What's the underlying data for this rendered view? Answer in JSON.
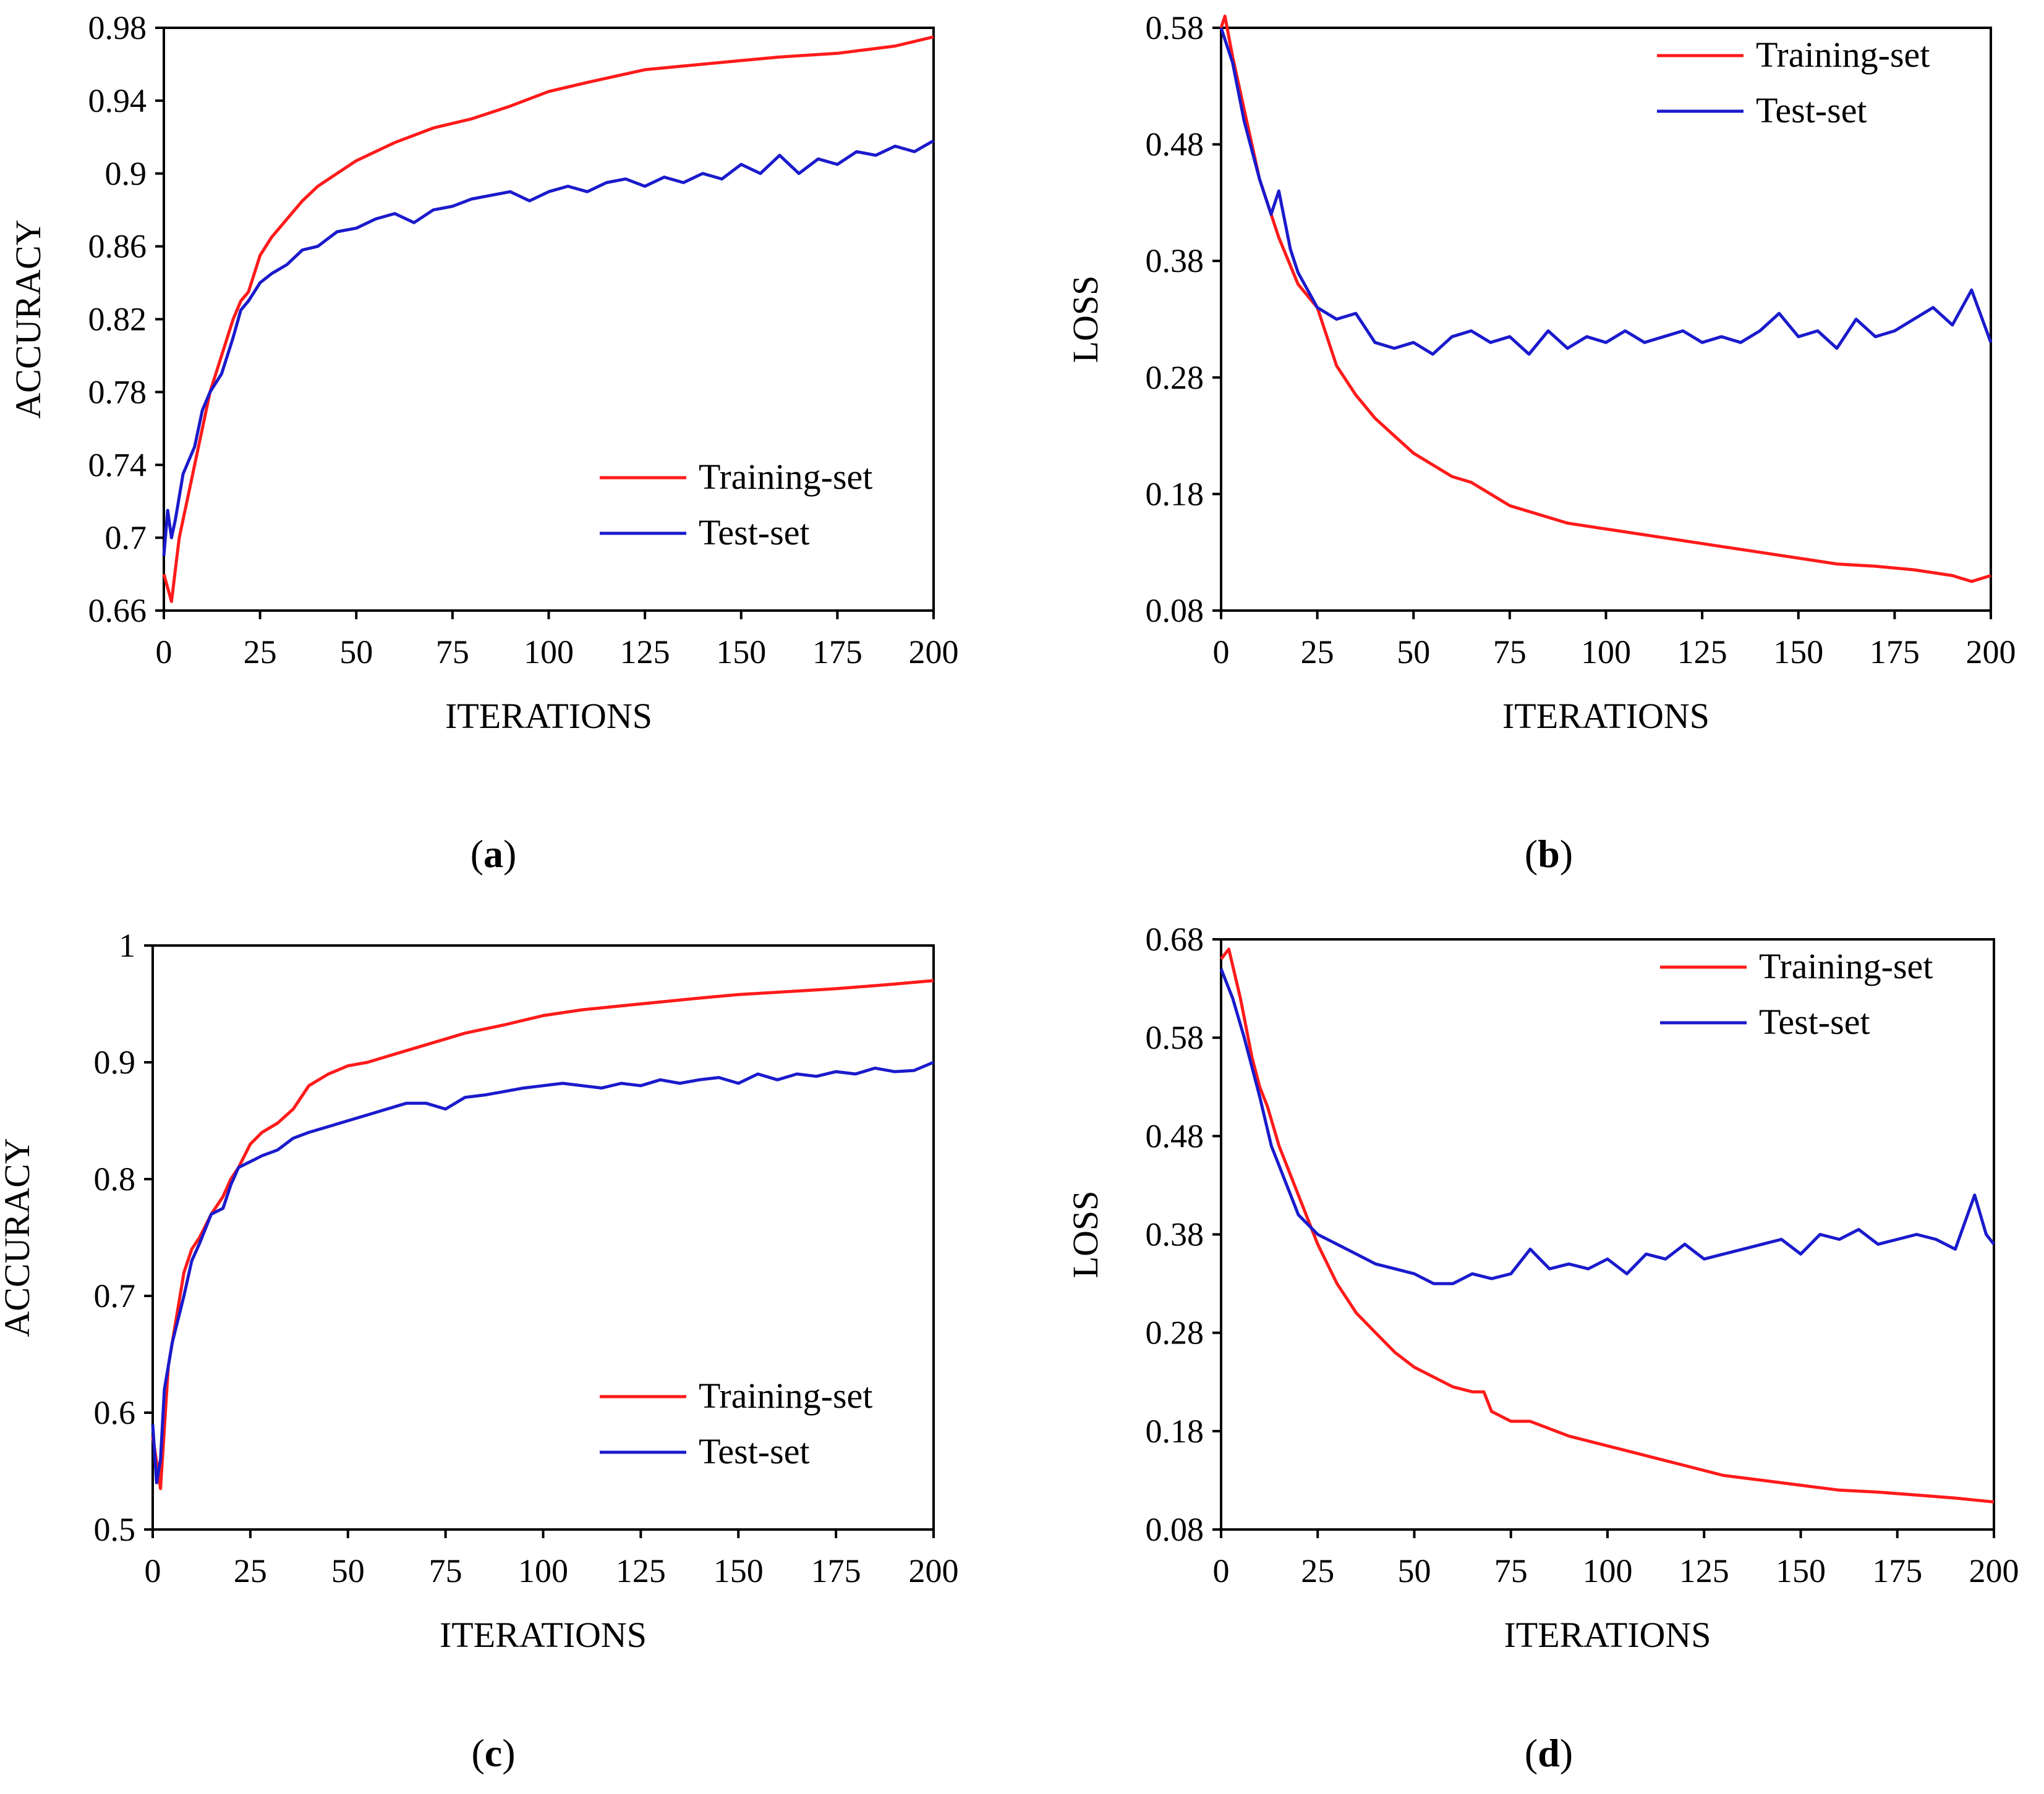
{
  "panels": [
    {
      "caption_letter": "a"
    },
    {
      "caption_letter": "b"
    },
    {
      "caption_letter": "c"
    },
    {
      "caption_letter": "d"
    }
  ],
  "colors": {
    "train": "#ff1a1a",
    "test": "#1a1acc",
    "axis": "#000000"
  },
  "chart_data": [
    {
      "type": "line",
      "xlabel": "ITERATIONS",
      "ylabel": "ACCURACY",
      "xlim": [
        0,
        200
      ],
      "ylim": [
        0.66,
        0.98
      ],
      "xticks": [
        "0",
        "25",
        "50",
        "75",
        "100",
        "125",
        "150",
        "175",
        "200"
      ],
      "yticks": [
        "0.66",
        "0.7",
        "0.74",
        "0.78",
        "0.82",
        "0.86",
        "0.9",
        "0.94",
        "0.98"
      ],
      "legend_position": "bottom-right",
      "grid": false,
      "series": [
        {
          "name": "Training-set",
          "color": "#ff1a1a",
          "x": [
            0,
            2,
            4,
            6,
            8,
            10,
            12,
            15,
            18,
            20,
            22,
            25,
            28,
            32,
            36,
            40,
            45,
            50,
            55,
            60,
            70,
            80,
            90,
            100,
            110,
            125,
            140,
            150,
            160,
            175,
            190,
            200
          ],
          "y": [
            0.68,
            0.665,
            0.7,
            0.72,
            0.74,
            0.76,
            0.78,
            0.8,
            0.82,
            0.83,
            0.835,
            0.855,
            0.865,
            0.875,
            0.885,
            0.893,
            0.9,
            0.907,
            0.912,
            0.917,
            0.925,
            0.93,
            0.937,
            0.945,
            0.95,
            0.957,
            0.96,
            0.962,
            0.964,
            0.966,
            0.97,
            0.975
          ]
        },
        {
          "name": "Test-set",
          "color": "#1a1acc",
          "x": [
            0,
            1,
            2,
            3,
            5,
            8,
            10,
            12,
            15,
            18,
            20,
            22,
            25,
            28,
            32,
            36,
            40,
            45,
            50,
            55,
            60,
            65,
            70,
            75,
            80,
            85,
            90,
            95,
            100,
            105,
            110,
            115,
            120,
            125,
            130,
            135,
            140,
            145,
            150,
            155,
            160,
            165,
            170,
            175,
            180,
            185,
            190,
            195,
            200
          ],
          "y": [
            0.69,
            0.715,
            0.7,
            0.71,
            0.735,
            0.75,
            0.77,
            0.78,
            0.79,
            0.81,
            0.825,
            0.83,
            0.84,
            0.845,
            0.85,
            0.858,
            0.86,
            0.868,
            0.87,
            0.875,
            0.878,
            0.873,
            0.88,
            0.882,
            0.886,
            0.888,
            0.89,
            0.885,
            0.89,
            0.893,
            0.89,
            0.895,
            0.897,
            0.893,
            0.898,
            0.895,
            0.9,
            0.897,
            0.905,
            0.9,
            0.91,
            0.9,
            0.908,
            0.905,
            0.912,
            0.91,
            0.915,
            0.912,
            0.918
          ]
        }
      ]
    },
    {
      "type": "line",
      "xlabel": "ITERATIONS",
      "ylabel": "LOSS",
      "xlim": [
        0,
        200
      ],
      "ylim": [
        0.08,
        0.58
      ],
      "xticks": [
        "0",
        "25",
        "50",
        "75",
        "100",
        "125",
        "150",
        "175",
        "200"
      ],
      "yticks": [
        "0.08",
        "0.18",
        "0.28",
        "0.38",
        "0.48",
        "0.58"
      ],
      "legend_position": "top-right",
      "grid": false,
      "series": [
        {
          "name": "Training-set",
          "color": "#ff1a1a",
          "x": [
            0,
            1,
            3,
            6,
            10,
            15,
            20,
            25,
            30,
            35,
            40,
            45,
            50,
            55,
            60,
            65,
            70,
            75,
            80,
            90,
            100,
            110,
            120,
            130,
            140,
            150,
            160,
            170,
            180,
            190,
            195,
            200
          ],
          "y": [
            0.58,
            0.59,
            0.555,
            0.51,
            0.45,
            0.4,
            0.36,
            0.34,
            0.29,
            0.265,
            0.245,
            0.23,
            0.215,
            0.205,
            0.195,
            0.19,
            0.18,
            0.17,
            0.165,
            0.155,
            0.15,
            0.145,
            0.14,
            0.135,
            0.13,
            0.125,
            0.12,
            0.118,
            0.115,
            0.11,
            0.105,
            0.11
          ]
        },
        {
          "name": "Test-set",
          "color": "#1a1acc",
          "x": [
            0,
            3,
            6,
            10,
            13,
            15,
            18,
            20,
            25,
            30,
            35,
            40,
            45,
            50,
            55,
            60,
            65,
            70,
            75,
            80,
            85,
            90,
            95,
            100,
            105,
            110,
            115,
            120,
            125,
            130,
            135,
            140,
            145,
            150,
            155,
            160,
            165,
            170,
            175,
            180,
            185,
            190,
            195,
            200
          ],
          "y": [
            0.58,
            0.55,
            0.5,
            0.45,
            0.42,
            0.44,
            0.39,
            0.37,
            0.34,
            0.33,
            0.335,
            0.31,
            0.305,
            0.31,
            0.3,
            0.315,
            0.32,
            0.31,
            0.315,
            0.3,
            0.32,
            0.305,
            0.315,
            0.31,
            0.32,
            0.31,
            0.315,
            0.32,
            0.31,
            0.315,
            0.31,
            0.32,
            0.335,
            0.315,
            0.32,
            0.305,
            0.33,
            0.315,
            0.32,
            0.33,
            0.34,
            0.325,
            0.355,
            0.31
          ]
        }
      ]
    },
    {
      "type": "line",
      "xlabel": "ITERATIONS",
      "ylabel": "ACCURACY",
      "xlim": [
        0,
        200
      ],
      "ylim": [
        0.5,
        1.0
      ],
      "xticks": [
        "0",
        "25",
        "50",
        "75",
        "100",
        "125",
        "150",
        "175",
        "200"
      ],
      "yticks": [
        "0.5",
        "0.6",
        "0.7",
        "0.8",
        "0.9",
        "1"
      ],
      "legend_position": "bottom-right",
      "grid": false,
      "series": [
        {
          "name": "Training-set",
          "color": "#ff1a1a",
          "x": [
            0,
            2,
            4,
            6,
            8,
            10,
            12,
            15,
            18,
            20,
            22,
            25,
            28,
            32,
            36,
            40,
            45,
            50,
            55,
            60,
            70,
            80,
            90,
            100,
            110,
            125,
            140,
            150,
            160,
            175,
            190,
            200
          ],
          "y": [
            0.58,
            0.535,
            0.64,
            0.68,
            0.72,
            0.74,
            0.75,
            0.77,
            0.785,
            0.8,
            0.81,
            0.83,
            0.84,
            0.848,
            0.86,
            0.88,
            0.89,
            0.897,
            0.9,
            0.905,
            0.915,
            0.925,
            0.932,
            0.94,
            0.945,
            0.95,
            0.955,
            0.958,
            0.96,
            0.963,
            0.967,
            0.97
          ]
        },
        {
          "name": "Test-set",
          "color": "#1a1acc",
          "x": [
            0,
            1,
            2,
            3,
            5,
            8,
            10,
            12,
            15,
            18,
            20,
            22,
            25,
            28,
            32,
            36,
            40,
            45,
            50,
            55,
            60,
            65,
            70,
            75,
            80,
            85,
            90,
            95,
            100,
            105,
            110,
            115,
            120,
            125,
            130,
            135,
            140,
            145,
            150,
            155,
            160,
            165,
            170,
            175,
            180,
            185,
            190,
            195,
            200
          ],
          "y": [
            0.59,
            0.54,
            0.56,
            0.62,
            0.66,
            0.7,
            0.73,
            0.745,
            0.77,
            0.775,
            0.795,
            0.81,
            0.815,
            0.82,
            0.825,
            0.835,
            0.84,
            0.845,
            0.85,
            0.855,
            0.86,
            0.865,
            0.865,
            0.86,
            0.87,
            0.872,
            0.875,
            0.878,
            0.88,
            0.882,
            0.88,
            0.878,
            0.882,
            0.88,
            0.885,
            0.882,
            0.885,
            0.887,
            0.882,
            0.89,
            0.885,
            0.89,
            0.888,
            0.892,
            0.89,
            0.895,
            0.892,
            0.893,
            0.9
          ]
        }
      ]
    },
    {
      "type": "line",
      "xlabel": "ITERATIONS",
      "ylabel": "LOSS",
      "xlim": [
        0,
        200
      ],
      "ylim": [
        0.08,
        0.68
      ],
      "xticks": [
        "0",
        "25",
        "50",
        "75",
        "100",
        "125",
        "150",
        "175",
        "200"
      ],
      "yticks": [
        "0.08",
        "0.18",
        "0.28",
        "0.38",
        "0.48",
        "0.58",
        "0.68"
      ],
      "legend_position": "top-right",
      "grid": false,
      "series": [
        {
          "name": "Training-set",
          "color": "#ff1a1a",
          "x": [
            0,
            2,
            5,
            8,
            10,
            12,
            15,
            20,
            25,
            30,
            35,
            40,
            45,
            50,
            55,
            60,
            65,
            68,
            70,
            75,
            80,
            90,
            100,
            110,
            120,
            130,
            140,
            150,
            160,
            170,
            180,
            190,
            195,
            200
          ],
          "y": [
            0.66,
            0.67,
            0.62,
            0.56,
            0.53,
            0.51,
            0.47,
            0.42,
            0.37,
            0.33,
            0.3,
            0.28,
            0.26,
            0.245,
            0.235,
            0.225,
            0.22,
            0.22,
            0.2,
            0.19,
            0.19,
            0.175,
            0.165,
            0.155,
            0.145,
            0.135,
            0.13,
            0.125,
            0.12,
            0.118,
            0.115,
            0.112,
            0.11,
            0.108
          ]
        },
        {
          "name": "Test-set",
          "color": "#1a1acc",
          "x": [
            0,
            3,
            6,
            10,
            13,
            15,
            18,
            20,
            25,
            30,
            35,
            40,
            45,
            50,
            55,
            60,
            65,
            70,
            75,
            80,
            85,
            90,
            95,
            100,
            105,
            110,
            115,
            120,
            125,
            130,
            135,
            140,
            145,
            150,
            155,
            160,
            165,
            170,
            175,
            180,
            185,
            190,
            195,
            198,
            200
          ],
          "y": [
            0.65,
            0.62,
            0.58,
            0.52,
            0.47,
            0.45,
            0.42,
            0.4,
            0.38,
            0.37,
            0.36,
            0.35,
            0.345,
            0.34,
            0.33,
            0.33,
            0.34,
            0.335,
            0.34,
            0.365,
            0.345,
            0.35,
            0.345,
            0.355,
            0.34,
            0.36,
            0.355,
            0.37,
            0.355,
            0.36,
            0.365,
            0.37,
            0.375,
            0.36,
            0.38,
            0.375,
            0.385,
            0.37,
            0.375,
            0.38,
            0.375,
            0.365,
            0.42,
            0.38,
            0.37
          ]
        }
      ]
    }
  ]
}
